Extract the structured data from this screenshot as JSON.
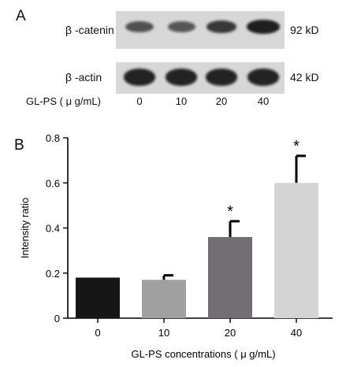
{
  "panel_a": {
    "letter": "A",
    "rows": [
      {
        "label": "β -catenin",
        "size": "92 kD",
        "intensities": [
          0.55,
          0.5,
          0.75,
          0.95
        ]
      },
      {
        "label": "β -actin",
        "size": "42 kD",
        "intensities": [
          0.92,
          0.92,
          0.92,
          0.92
        ]
      }
    ],
    "lane_caption": "GL-PS ( μ g/mL)",
    "lanes": [
      "0",
      "10",
      "20",
      "40"
    ],
    "band_color": "#1a1a1a",
    "background_color": "#d7d7d7"
  },
  "chart_data": {
    "type": "bar",
    "panel_letter": "B",
    "categories": [
      "0",
      "10",
      "20",
      "40"
    ],
    "values": [
      0.18,
      0.17,
      0.36,
      0.6
    ],
    "errors": [
      0.0,
      0.02,
      0.07,
      0.12
    ],
    "significance": [
      "",
      "",
      "*",
      "*"
    ],
    "bar_colors": [
      "#161616",
      "#a0a0a0",
      "#736e73",
      "#d4d4d4"
    ],
    "xlabel": "GL-PS concentrations ( μ g/mL)",
    "ylabel": "Intensity ratio",
    "ylim": [
      0,
      0.8
    ],
    "yticks": [
      "0",
      "0.2",
      "0.4",
      "0.6",
      "0.8"
    ],
    "grid": false
  }
}
